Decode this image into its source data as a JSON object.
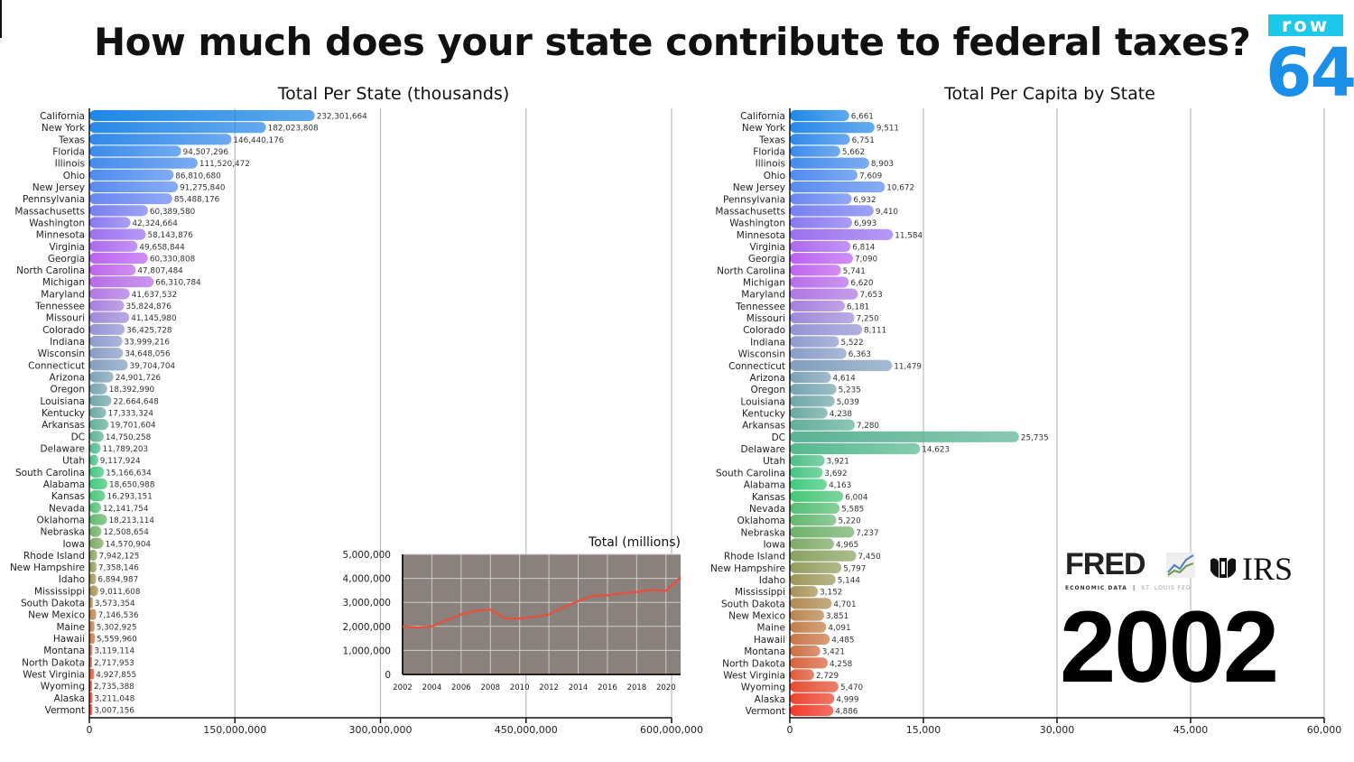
{
  "title": "How much does your state contribute to federal taxes?",
  "brand": {
    "logo_top": "row",
    "logo_bottom": "64",
    "fred": "FRED",
    "fred_sub": "ECONOMIC DATA",
    "fred_sub2": "ST. LOUIS FED",
    "irs": "IRS"
  },
  "year": "2002",
  "colors": {
    "stops": [
      "#1e88e5",
      "#5b8cf0",
      "#c45ff0",
      "#8f9ad0",
      "#6aa8a0",
      "#3ecb7a",
      "#8fa060",
      "#c87a48",
      "#f2392a"
    ],
    "line": "#e8503c",
    "inset_bg": "#8a807c"
  },
  "chart_data": [
    {
      "type": "bar",
      "orientation": "horizontal",
      "title": "Total Per State (thousands)",
      "xlim": [
        0,
        600000000
      ],
      "xticks": [
        0,
        150000000,
        300000000,
        450000000,
        600000000
      ],
      "xtick_labels": [
        "0",
        "150,000,000",
        "300,000,000",
        "450,000,000",
        "600,000,000"
      ],
      "grid": true,
      "categories": [
        "California",
        "New York",
        "Texas",
        "Florida",
        "Illinois",
        "Ohio",
        "New Jersey",
        "Pennsylvania",
        "Massachusetts",
        "Washington",
        "Minnesota",
        "Virginia",
        "Georgia",
        "North Carolina",
        "Michigan",
        "Maryland",
        "Tennessee",
        "Missouri",
        "Colorado",
        "Indiana",
        "Wisconsin",
        "Connecticut",
        "Arizona",
        "Oregon",
        "Louisiana",
        "Kentucky",
        "Arkansas",
        "DC",
        "Delaware",
        "Utah",
        "South Carolina",
        "Alabama",
        "Kansas",
        "Nevada",
        "Oklahoma",
        "Nebraska",
        "Iowa",
        "Rhode Island",
        "New Hampshire",
        "Idaho",
        "Mississippi",
        "South Dakota",
        "New Mexico",
        "Maine",
        "Hawaii",
        "Montana",
        "North Dakota",
        "West Virginia",
        "Wyoming",
        "Alaska",
        "Vermont"
      ],
      "values": [
        232301664,
        182023808,
        146440176,
        94507296,
        111520472,
        86810680,
        91275840,
        85488176,
        60389580,
        42324664,
        58143876,
        49658844,
        60330808,
        47807484,
        66310784,
        41637532,
        35824876,
        41145980,
        36425728,
        33999216,
        34648056,
        39704704,
        24901726,
        18392990,
        22664648,
        17333324,
        19701604,
        14750258,
        11789203,
        9117924,
        15166634,
        18650988,
        16293151,
        12141754,
        18213114,
        12508654,
        14570904,
        7942125,
        7358146,
        6894987,
        9011608,
        3573354,
        7146536,
        5302925,
        5559960,
        3119114,
        2717953,
        4927855,
        2735388,
        3211048,
        3007156
      ],
      "value_labels": [
        "232,301,664",
        "182,023,808",
        "146,440,176",
        "94,507,296",
        "111,520,472",
        "86,810,680",
        "91,275,840",
        "85,488,176",
        "60,389,580",
        "42,324,664",
        "58,143,876",
        "49,658,844",
        "60,330,808",
        "47,807,484",
        "66,310,784",
        "41,637,532",
        "35,824,876",
        "41,145,980",
        "36,425,728",
        "33,999,216",
        "34,648,056",
        "39,704,704",
        "24,901,726",
        "18,392,990",
        "22,664,648",
        "17,333,324",
        "19,701,604",
        "14,750,258",
        "11,789,203",
        "9,117,924",
        "15,166,634",
        "18,650,988",
        "16,293,151",
        "12,141,754",
        "18,213,114",
        "12,508,654",
        "14,570,904",
        "7,942,125",
        "7,358,146",
        "6,894,987",
        "9,011,608",
        "3,573,354",
        "7,146,536",
        "5,302,925",
        "5,559,960",
        "3,119,114",
        "2,717,953",
        "4,927,855",
        "2,735,388",
        "3,211,048",
        "3,007,156"
      ]
    },
    {
      "type": "bar",
      "orientation": "horizontal",
      "title": "Total Per Capita by State",
      "xlim": [
        0,
        60000
      ],
      "xticks": [
        0,
        15000,
        30000,
        45000,
        60000
      ],
      "xtick_labels": [
        "0",
        "15,000",
        "30,000",
        "45,000",
        "60,000"
      ],
      "grid": true,
      "categories": [
        "California",
        "New York",
        "Texas",
        "Florida",
        "Illinois",
        "Ohio",
        "New Jersey",
        "Pennsylvania",
        "Massachusetts",
        "Washington",
        "Minnesota",
        "Virginia",
        "Georgia",
        "North Carolina",
        "Michigan",
        "Maryland",
        "Tennessee",
        "Missouri",
        "Colorado",
        "Indiana",
        "Wisconsin",
        "Connecticut",
        "Arizona",
        "Oregon",
        "Louisiana",
        "Kentucky",
        "Arkansas",
        "DC",
        "Delaware",
        "Utah",
        "South Carolina",
        "Alabama",
        "Kansas",
        "Nevada",
        "Oklahoma",
        "Nebraska",
        "Iowa",
        "Rhode Island",
        "New Hampshire",
        "Idaho",
        "Mississippi",
        "South Dakota",
        "New Mexico",
        "Maine",
        "Hawaii",
        "Montana",
        "North Dakota",
        "West Virginia",
        "Wyoming",
        "Alaska",
        "Vermont"
      ],
      "values": [
        6661,
        9511,
        6751,
        5662,
        8903,
        7609,
        10672,
        6932,
        9410,
        6993,
        11584,
        6814,
        7090,
        5741,
        6620,
        7653,
        6181,
        7250,
        8111,
        5522,
        6363,
        11479,
        4614,
        5235,
        5039,
        4238,
        7280,
        25735,
        14623,
        3921,
        3692,
        4163,
        6004,
        5585,
        5220,
        7237,
        4965,
        7450,
        5797,
        5144,
        3152,
        4701,
        3851,
        4091,
        4485,
        3421,
        4258,
        2729,
        5470,
        4999,
        4886
      ],
      "value_labels": [
        "6,661",
        "9,511",
        "6,751",
        "5,662",
        "8,903",
        "7,609",
        "10,672",
        "6,932",
        "9,410",
        "6,993",
        "11,584",
        "6,814",
        "7,090",
        "5,741",
        "6,620",
        "7,653",
        "6,181",
        "7,250",
        "8,111",
        "5,522",
        "6,363",
        "11,479",
        "4,614",
        "5,235",
        "5,039",
        "4,238",
        "7,280",
        "25,735",
        "14,623",
        "3,921",
        "3,692",
        "4,163",
        "6,004",
        "5,585",
        "5,220",
        "7,237",
        "4,965",
        "7,450",
        "5,797",
        "5,144",
        "3,152",
        "4,701",
        "3,851",
        "4,091",
        "4,485",
        "3,421",
        "4,258",
        "2,729",
        "5,470",
        "4,999",
        "4,886"
      ]
    },
    {
      "type": "line",
      "title": "Total (millions)",
      "x": [
        2002,
        2003,
        2004,
        2005,
        2006,
        2007,
        2008,
        2009,
        2010,
        2011,
        2012,
        2013,
        2014,
        2015,
        2016,
        2017,
        2018,
        2019,
        2020,
        2021
      ],
      "y": [
        2000000,
        1950000,
        2000000,
        2250000,
        2500000,
        2650000,
        2700000,
        2330000,
        2330000,
        2400000,
        2500000,
        2800000,
        3050000,
        3270000,
        3300000,
        3380000,
        3430000,
        3520000,
        3480000,
        4050000
      ],
      "xlim": [
        2002,
        2021
      ],
      "ylim": [
        0,
        5000000
      ],
      "xticks": [
        2002,
        2004,
        2006,
        2008,
        2010,
        2012,
        2014,
        2016,
        2018,
        2020
      ],
      "yticks": [
        0,
        1000000,
        2000000,
        3000000,
        4000000,
        5000000
      ],
      "ytick_labels": [
        "0",
        "1,000,000",
        "2,000,000",
        "3,000,000",
        "4,000,000",
        "5,000,000"
      ],
      "grid": true
    }
  ]
}
